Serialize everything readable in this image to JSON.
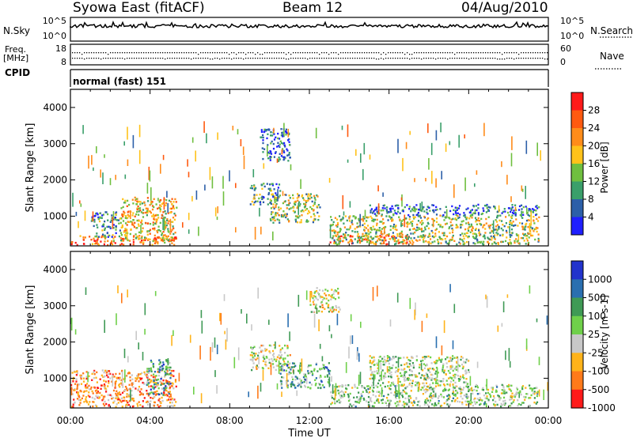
{
  "header": {
    "station": "Syowa East (fitACF)",
    "beam": "Beam 12",
    "date": "04/Aug/2010"
  },
  "top_strips": {
    "nsky_label": "N.Sky",
    "nsearch_label": "N.Search",
    "nsky_ticks_left": [
      "10^5",
      "10^0"
    ],
    "nsky_ticks_right": [
      "10^5",
      "10^0"
    ],
    "freq_label": "Freq.",
    "freq_unit": "[MHz]",
    "freq_ticks_left": [
      "18",
      "8"
    ],
    "nave_label": "Nave",
    "nave_ticks_right": [
      "60",
      "0"
    ],
    "cpid_label": "CPID",
    "cpid_value": "normal (fast) 151"
  },
  "axes": {
    "ylabel": "Slant Range [km]",
    "xlabel": "Time UT",
    "yticks": [
      "4000",
      "3000",
      "2000",
      "1000"
    ],
    "xticks": [
      "00:00",
      "04:00",
      "08:00",
      "12:00",
      "16:00",
      "20:00",
      "00:00"
    ]
  },
  "colorbars": {
    "power": {
      "label": "Power [dB]",
      "ticks": [
        "28",
        "24",
        "20",
        "16",
        "12",
        "8",
        "4"
      ],
      "colors": [
        "#ff1a1a",
        "#ff5a10",
        "#ff8c1a",
        "#ffc21a",
        "#6fbf3f",
        "#3a9f6a",
        "#2c5fa8",
        "#1f1fff"
      ]
    },
    "velocity": {
      "label": "Velocity [m s-1]",
      "ticks": [
        "1000",
        "500",
        "100",
        "25",
        "-25",
        "-100",
        "-500",
        "-1000"
      ],
      "colors": [
        "#2233cc",
        "#2a6fb0",
        "#3f9a55",
        "#6fd04a",
        "#c8c8c8",
        "#ffb31a",
        "#ff7a1a",
        "#ff1a1a"
      ]
    }
  },
  "chart_data": [
    {
      "type": "heatmap",
      "title": "Power [dB]",
      "xlabel": "Time UT",
      "ylabel": "Slant Range [km]",
      "xlim": [
        "00:00",
        "24:00"
      ],
      "ylim": [
        180,
        4500
      ],
      "clim": [
        0,
        30
      ],
      "regions": [
        {
          "t0": 0.0,
          "t1": 5.3,
          "r0": 180,
          "r1": 450,
          "value": 22
        },
        {
          "t0": 2.5,
          "t1": 5.3,
          "r0": 300,
          "r1": 1500,
          "value": 18
        },
        {
          "t0": 1.0,
          "t1": 2.5,
          "r0": 400,
          "r1": 1100,
          "value": 8
        },
        {
          "t0": 9.0,
          "t1": 10.5,
          "r0": 1300,
          "r1": 1900,
          "value": 10
        },
        {
          "t0": 10.0,
          "t1": 12.5,
          "r0": 800,
          "r1": 1600,
          "value": 14
        },
        {
          "t0": 9.5,
          "t1": 11.0,
          "r0": 2500,
          "r1": 3400,
          "value": 5
        },
        {
          "t0": 13.0,
          "t1": 17.0,
          "r0": 200,
          "r1": 450,
          "value": 24
        },
        {
          "t0": 13.0,
          "t1": 23.5,
          "r0": 200,
          "r1": 1000,
          "value": 14
        },
        {
          "t0": 15.0,
          "t1": 23.5,
          "r0": 1000,
          "r1": 1300,
          "value": 6
        }
      ]
    },
    {
      "type": "heatmap",
      "title": "Velocity [m s-1]",
      "xlabel": "Time UT",
      "ylabel": "Slant Range [km]",
      "xlim": [
        "00:00",
        "24:00"
      ],
      "ylim": [
        180,
        4500
      ],
      "clim": [
        -1000,
        1000
      ],
      "regions": [
        {
          "t0": 0.0,
          "t1": 5.3,
          "r0": 180,
          "r1": 1200,
          "value": -450
        },
        {
          "t0": 3.8,
          "t1": 5.0,
          "r0": 500,
          "r1": 1500,
          "value": 400
        },
        {
          "t0": 9.0,
          "t1": 11.0,
          "r0": 1200,
          "r1": 1900,
          "value": -150
        },
        {
          "t0": 10.5,
          "t1": 13.0,
          "r0": 700,
          "r1": 1400,
          "value": 350
        },
        {
          "t0": 13.0,
          "t1": 23.5,
          "r0": 200,
          "r1": 800,
          "value": 80
        },
        {
          "t0": 15.0,
          "t1": 20.0,
          "r0": 800,
          "r1": 1600,
          "value": 0
        },
        {
          "t0": 12.0,
          "t1": 13.5,
          "r0": 2800,
          "r1": 3500,
          "value": -120
        }
      ]
    }
  ]
}
